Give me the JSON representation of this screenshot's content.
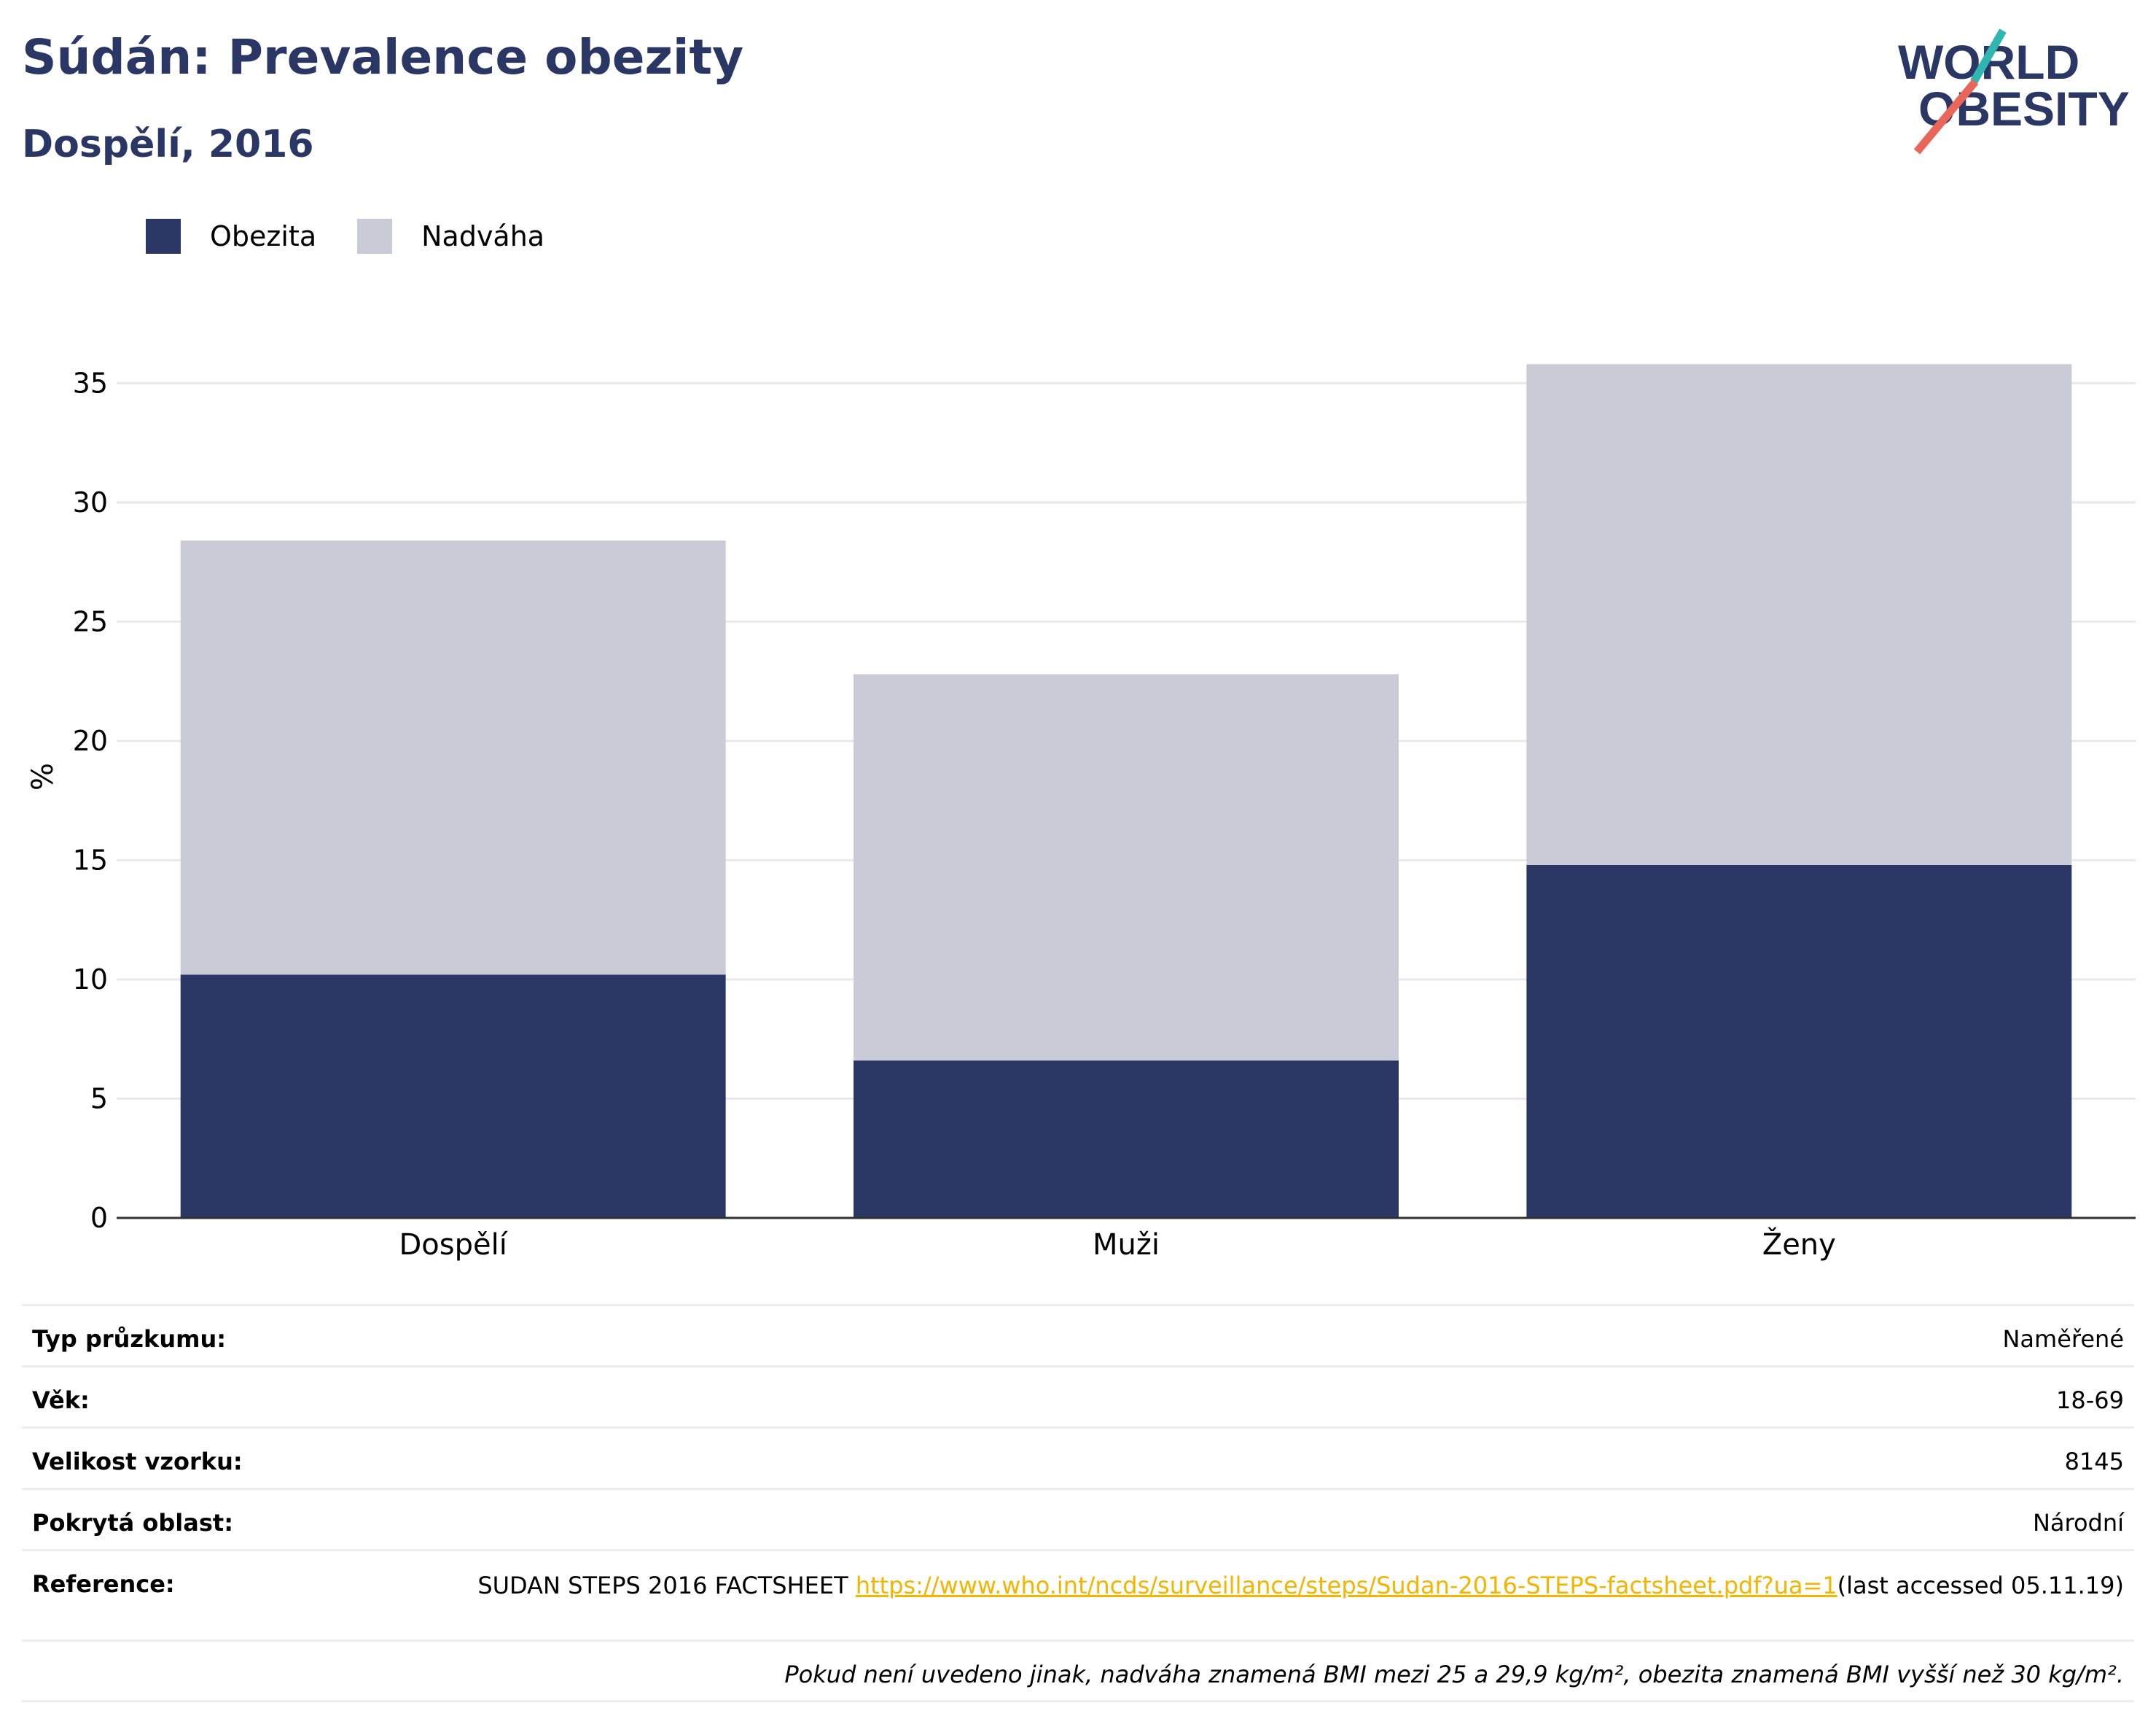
{
  "header": {
    "title": "Súdán: Prevalence obezity",
    "subtitle": "Dospělí, 2016"
  },
  "logo": {
    "line1": "WORLD",
    "line2": "OBESITY"
  },
  "colors": {
    "obesity": "#2a3663",
    "overweight": "#cacbd6",
    "title": "#2a3663",
    "link": "#f3b500"
  },
  "chart_data": {
    "type": "bar",
    "stacked": true,
    "categories": [
      "Dospělí",
      "Muži",
      "Ženy"
    ],
    "series": [
      {
        "name": "Obezita",
        "values": [
          10.2,
          6.6,
          14.8
        ]
      },
      {
        "name": "Nadváha",
        "values": [
          18.2,
          16.2,
          21.0
        ]
      }
    ],
    "ylabel": "%",
    "ylim": [
      0,
      37
    ],
    "yticks": [
      0,
      5,
      10,
      15,
      20,
      25,
      30,
      35
    ],
    "grid": true,
    "legend_position": "top-left"
  },
  "meta": {
    "rows": [
      {
        "key": "Typ průzkumu:",
        "value": "Naměřené"
      },
      {
        "key": "Věk:",
        "value": "18-69"
      },
      {
        "key": "Velikost vzorku:",
        "value": "8145"
      },
      {
        "key": "Pokrytá oblast:",
        "value": "Národní"
      }
    ],
    "reference": {
      "key": "Reference:",
      "text": "SUDAN STEPS 2016 FACTSHEET ",
      "link": "https://www.who.int/ncds/surveillance/steps/Sudan-2016-STEPS-factsheet.pdf?ua=1",
      "suffix": "(last accessed 05.11.19)"
    },
    "note": "Pokud není uvedeno jinak, nadváha znamená BMI mezi 25 a 29,9 kg/m², obezita znamená BMI vyšší než 30 kg/m²."
  }
}
